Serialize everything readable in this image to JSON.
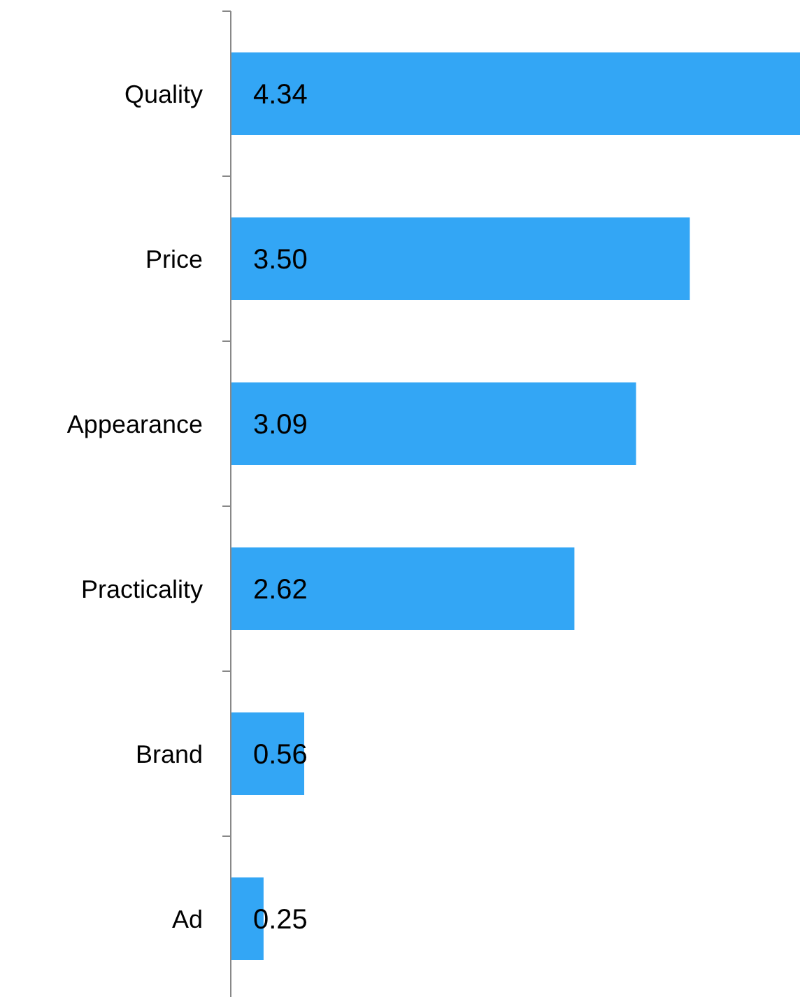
{
  "chart_data": {
    "type": "bar",
    "orientation": "horizontal",
    "categories": [
      "Quality",
      "Price",
      "Appearance",
      "Practicality",
      "Brand",
      "Ad"
    ],
    "values": [
      4.34,
      3.5,
      3.09,
      2.62,
      0.56,
      0.25
    ],
    "value_labels": [
      "4.34",
      "3.50",
      "3.09",
      "2.62",
      "0.56",
      "0.25"
    ],
    "color": "#33a6f5"
  }
}
